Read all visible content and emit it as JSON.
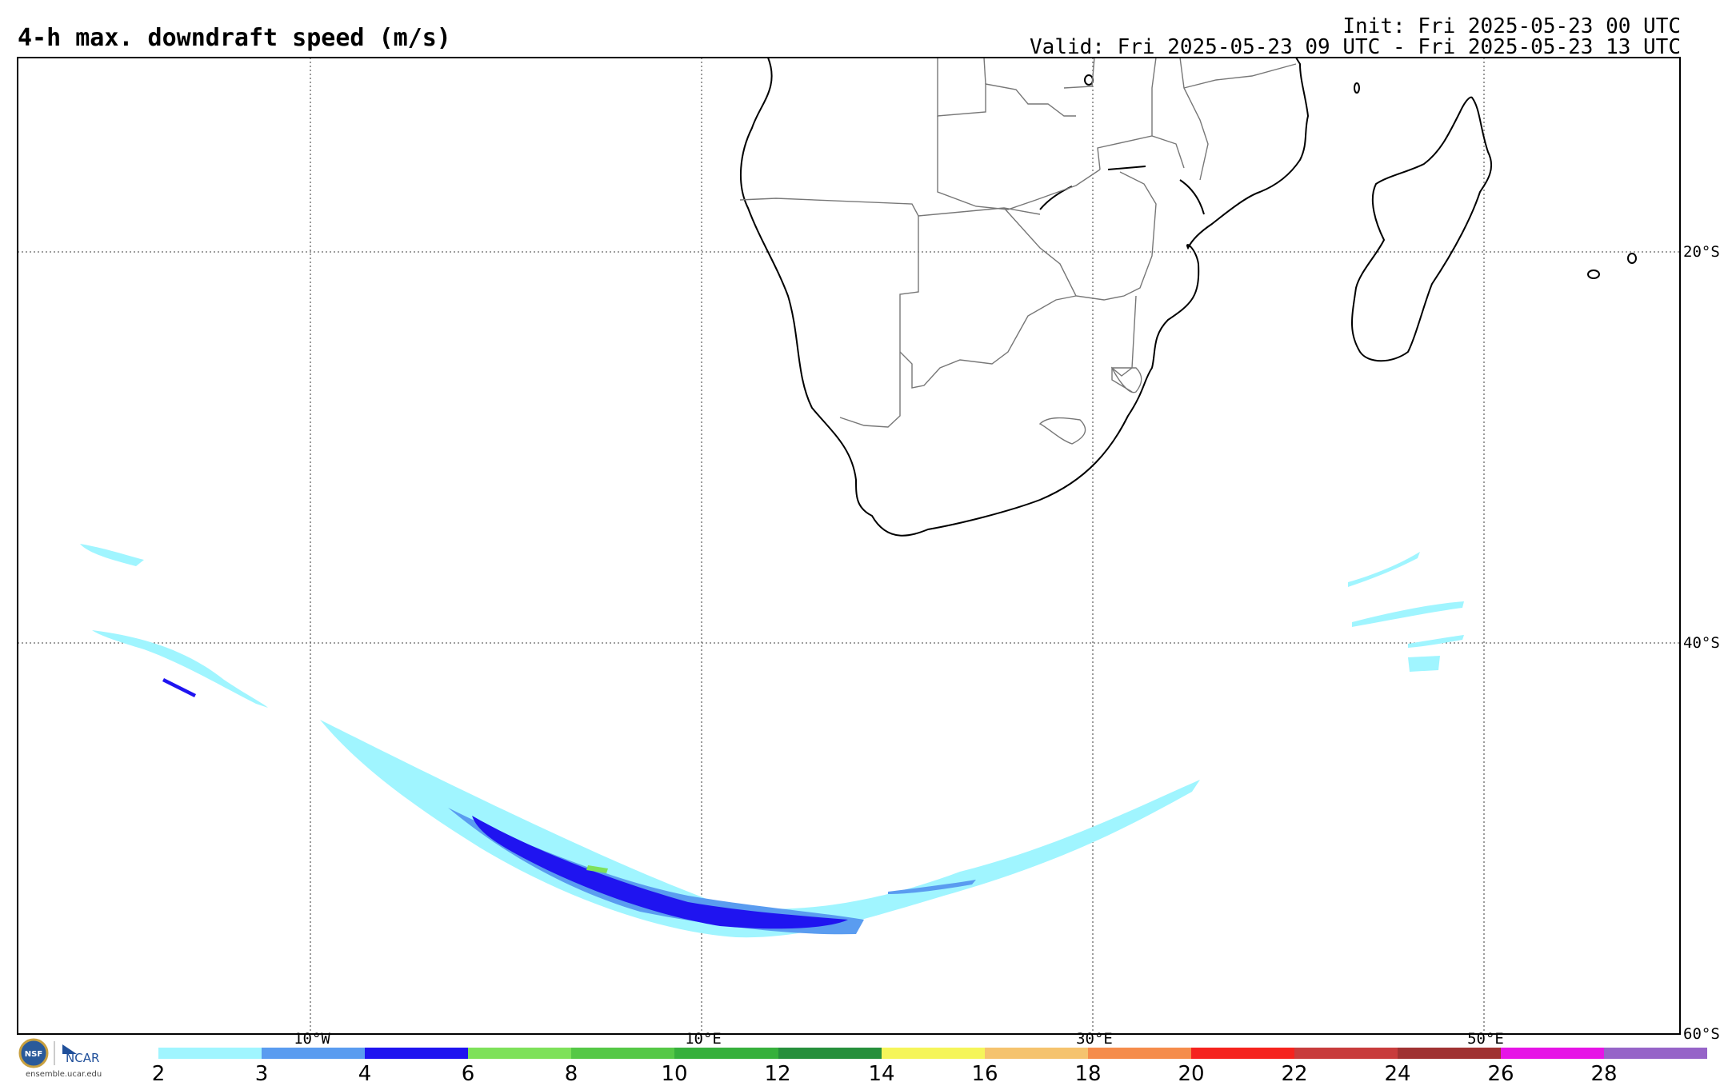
{
  "title": "4-h max. downdraft speed (m/s)",
  "init": "Init: Fri 2025-05-23 00 UTC",
  "valid": "Valid: Fri 2025-05-23 09 UTC - Fri 2025-05-23 13 UTC",
  "lon_labels": [
    "10°W",
    "10°E",
    "30°E",
    "50°E"
  ],
  "lat_labels": [
    "20°S",
    "40°S",
    "60°S"
  ],
  "colorbar": {
    "ticks": [
      "2",
      "3",
      "4",
      "6",
      "8",
      "10",
      "12",
      "14",
      "16",
      "18",
      "20",
      "22",
      "24",
      "26",
      "28"
    ],
    "colors": [
      "#a0f5ff",
      "#5a9cf0",
      "#1f14f0",
      "#7ee15a",
      "#55c846",
      "#36b03c",
      "#268f3c",
      "#f5f55a",
      "#f5c36e",
      "#f58c4b",
      "#f5231e",
      "#c83c3c",
      "#a03232",
      "#e614e6",
      "#9664c8"
    ]
  },
  "logo": {
    "nsf": "NSF",
    "ncar": "NCAR",
    "site": "ensemble.ucar.edu"
  },
  "map": {
    "coastline_color": "#000000",
    "border_color": "#777777",
    "grid_style": "dotted"
  }
}
